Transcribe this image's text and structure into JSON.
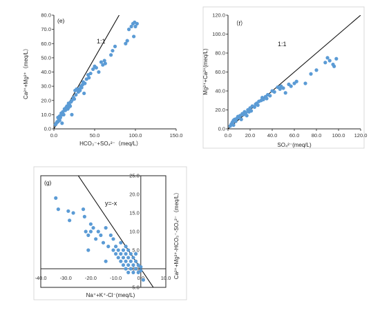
{
  "chart_data": [
    {
      "type": "scatter",
      "panel": "(e)",
      "xlabel": "HCO₃⁻+SO₄²⁻（meq/L）",
      "ylabel": "Ca²⁺+Mg²⁺（meq/L）",
      "xticks": [
        "0.0",
        "50.0",
        "100.0",
        "150.0"
      ],
      "yticks": [
        "0.0",
        "10.0",
        "20.0",
        "30.0",
        "40.0",
        "50.0",
        "60.0",
        "70.0",
        "80.0"
      ],
      "xlim": [
        0,
        150
      ],
      "ylim": [
        0,
        80
      ],
      "reference_line": {
        "label": "1:1",
        "slope": 1,
        "intercept": 0
      },
      "marker_color": "#5b9bd5",
      "points": [
        [
          2,
          3
        ],
        [
          3,
          4
        ],
        [
          4,
          5
        ],
        [
          5,
          5
        ],
        [
          5,
          8
        ],
        [
          6,
          7
        ],
        [
          7,
          6
        ],
        [
          7,
          9
        ],
        [
          8,
          8
        ],
        [
          9,
          11
        ],
        [
          10,
          10
        ],
        [
          10,
          4
        ],
        [
          11,
          12
        ],
        [
          12,
          10
        ],
        [
          13,
          14
        ],
        [
          14,
          13
        ],
        [
          15,
          15
        ],
        [
          16,
          16
        ],
        [
          17,
          14
        ],
        [
          18,
          15
        ],
        [
          18,
          18
        ],
        [
          19,
          17
        ],
        [
          20,
          16
        ],
        [
          21,
          19
        ],
        [
          22,
          20
        ],
        [
          22,
          10
        ],
        [
          24,
          22
        ],
        [
          25,
          21
        ],
        [
          26,
          27
        ],
        [
          27,
          24
        ],
        [
          28,
          28
        ],
        [
          30,
          26
        ],
        [
          31,
          28
        ],
        [
          32,
          27
        ],
        [
          33,
          30
        ],
        [
          34,
          29
        ],
        [
          35,
          31
        ],
        [
          36,
          33
        ],
        [
          37,
          25
        ],
        [
          38,
          32
        ],
        [
          40,
          35
        ],
        [
          42,
          38
        ],
        [
          43,
          36
        ],
        [
          45,
          39
        ],
        [
          48,
          42
        ],
        [
          50,
          44
        ],
        [
          52,
          43
        ],
        [
          55,
          40
        ],
        [
          58,
          47
        ],
        [
          60,
          45
        ],
        [
          62,
          48
        ],
        [
          63,
          46
        ],
        [
          70,
          52
        ],
        [
          72,
          55
        ],
        [
          75,
          58
        ],
        [
          88,
          60
        ],
        [
          90,
          62
        ],
        [
          92,
          70
        ],
        [
          95,
          72
        ],
        [
          97,
          74
        ],
        [
          99,
          75
        ],
        [
          100,
          72
        ],
        [
          102,
          74
        ],
        [
          98,
          65
        ]
      ]
    },
    {
      "type": "scatter",
      "panel": "（f）",
      "xlabel": "SO₄²⁻(meq/L)",
      "ylabel": "Mg²⁺+Ca²⁺(meq/L)",
      "xticks": [
        "0.0",
        "20.0",
        "40.0",
        "60.0",
        "80.0",
        "100.0",
        "120.0"
      ],
      "yticks": [
        "0.0",
        "20.0",
        "40.0",
        "60.0",
        "80.0",
        "100.0",
        "120.0"
      ],
      "xlim": [
        0,
        120
      ],
      "ylim": [
        0,
        120
      ],
      "reference_line": {
        "label": "1:1",
        "slope": 1,
        "intercept": 0
      },
      "marker_color": "#5b9bd5",
      "points": [
        [
          2,
          3
        ],
        [
          3,
          5
        ],
        [
          4,
          7
        ],
        [
          5,
          4
        ],
        [
          5,
          9
        ],
        [
          6,
          10
        ],
        [
          7,
          8
        ],
        [
          8,
          11
        ],
        [
          9,
          13
        ],
        [
          10,
          12
        ],
        [
          11,
          14
        ],
        [
          12,
          10
        ],
        [
          13,
          16
        ],
        [
          14,
          15
        ],
        [
          15,
          18
        ],
        [
          16,
          17
        ],
        [
          17,
          14
        ],
        [
          18,
          20
        ],
        [
          19,
          18
        ],
        [
          20,
          22
        ],
        [
          21,
          19
        ],
        [
          22,
          24
        ],
        [
          24,
          23
        ],
        [
          25,
          26
        ],
        [
          26,
          27
        ],
        [
          27,
          25
        ],
        [
          28,
          29
        ],
        [
          30,
          30
        ],
        [
          31,
          33
        ],
        [
          32,
          31
        ],
        [
          34,
          34
        ],
        [
          35,
          32
        ],
        [
          36,
          36
        ],
        [
          38,
          35
        ],
        [
          40,
          40
        ],
        [
          42,
          39
        ],
        [
          45,
          44
        ],
        [
          47,
          42
        ],
        [
          48,
          45
        ],
        [
          50,
          43
        ],
        [
          52,
          38
        ],
        [
          55,
          47
        ],
        [
          57,
          45
        ],
        [
          60,
          48
        ],
        [
          62,
          50
        ],
        [
          70,
          48
        ],
        [
          75,
          58
        ],
        [
          80,
          62
        ],
        [
          88,
          70
        ],
        [
          90,
          75
        ],
        [
          92,
          72
        ],
        [
          95,
          68
        ],
        [
          98,
          74
        ],
        [
          96,
          66
        ]
      ]
    },
    {
      "type": "scatter",
      "panel": "(g)",
      "xlabel": "Na⁺+K⁺-Cl⁻(meq/L)",
      "ylabel": "Ca²⁺+Mg²⁺-HCO₃⁻-SO₄²⁻（meq/L）",
      "xticks": [
        "-40.0",
        "-30.0",
        "-20.0",
        "-10.0",
        "0.0",
        "10.0"
      ],
      "yticks": [
        "-5.0",
        "0.0",
        "5.0",
        "10.0",
        "15.0",
        "20.0",
        "25.0"
      ],
      "xlim": [
        -40,
        10
      ],
      "ylim": [
        -5,
        25
      ],
      "reference_line": {
        "label": "y=-x",
        "slope": -1,
        "intercept": 0
      },
      "marker_color": "#5b9bd5",
      "points": [
        [
          -34,
          19
        ],
        [
          -33,
          16
        ],
        [
          -29,
          15.5
        ],
        [
          -28.5,
          13
        ],
        [
          -27,
          15
        ],
        [
          -23,
          16
        ],
        [
          -22.5,
          14
        ],
        [
          -22,
          10
        ],
        [
          -21,
          9
        ],
        [
          -20,
          12
        ],
        [
          -20,
          10
        ],
        [
          -19,
          11
        ],
        [
          -18,
          8
        ],
        [
          -17,
          10
        ],
        [
          -16,
          9
        ],
        [
          -15,
          7
        ],
        [
          -14,
          11
        ],
        [
          -13,
          6
        ],
        [
          -12,
          9
        ],
        [
          -11,
          5
        ],
        [
          -11,
          8
        ],
        [
          -10,
          4
        ],
        [
          -10,
          6
        ],
        [
          -9,
          5
        ],
        [
          -9,
          3
        ],
        [
          -8,
          4
        ],
        [
          -8,
          7
        ],
        [
          -8,
          2
        ],
        [
          -7,
          3
        ],
        [
          -7,
          5
        ],
        [
          -7,
          1
        ],
        [
          -6,
          6
        ],
        [
          -6,
          4
        ],
        [
          -6,
          2
        ],
        [
          -6,
          0
        ],
        [
          -5,
          3
        ],
        [
          -5,
          5
        ],
        [
          -5,
          1
        ],
        [
          -5,
          -1
        ],
        [
          -4,
          2
        ],
        [
          -4,
          4
        ],
        [
          -4,
          0
        ],
        [
          -3,
          3
        ],
        [
          -3,
          1
        ],
        [
          -3,
          -1
        ],
        [
          -2,
          2
        ],
        [
          -2,
          0
        ],
        [
          -2,
          4
        ],
        [
          -1,
          1
        ],
        [
          -1,
          -1
        ],
        [
          0,
          0.5
        ],
        [
          0,
          -0.5
        ],
        [
          -21,
          5
        ],
        [
          -14,
          2
        ],
        [
          1,
          -3
        ]
      ]
    }
  ]
}
